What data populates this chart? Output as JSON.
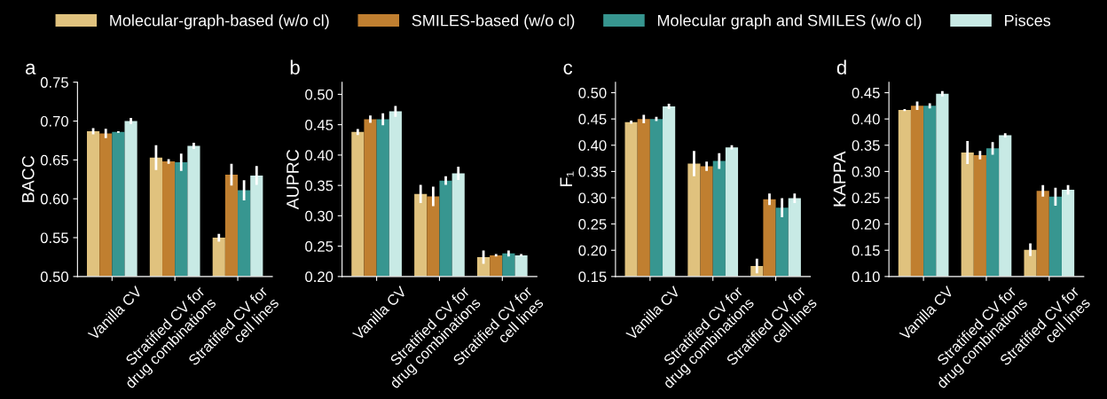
{
  "chart_data": [
    {
      "type": "bar",
      "title": "a",
      "ylabel": "BACC",
      "categories": [
        "Vanilla CV",
        "Stratified CV for\ndrug combinations",
        "Stratified CV for\ncell lines"
      ],
      "ylim": [
        0.5,
        0.75
      ],
      "yticks": [
        {
          "value": 0.5,
          "label": "0.50"
        },
        0.55,
        {
          "value": 0.6,
          "label": "0.60"
        },
        0.65,
        {
          "value": 0.7,
          "label": "0.70"
        },
        0.75
      ],
      "legend": "top",
      "grid": false,
      "series": [
        {
          "name": "Molecular-graph-based (w/o cl)",
          "color": "#e0c27e",
          "values": [
            0.687,
            0.653,
            0.55
          ],
          "errors": [
            0.004,
            0.016,
            0.005
          ]
        },
        {
          "name": "SMILES-based (w/o cl)",
          "color": "#c07f30",
          "values": [
            0.684,
            0.648,
            0.631
          ],
          "errors": [
            0.006,
            0.003,
            0.014
          ]
        },
        {
          "name": "Molecular graph and SMILES (w/o cl)",
          "color": "#379690",
          "values": [
            0.686,
            0.647,
            0.611
          ],
          "errors": [
            0.001,
            0.011,
            0.013
          ]
        },
        {
          "name": "Pisces",
          "color": "#c8eae5",
          "values": [
            0.7,
            0.668,
            0.63
          ],
          "errors": [
            0.004,
            0.004,
            0.012
          ]
        }
      ]
    },
    {
      "type": "bar",
      "title": "b",
      "ylabel": "AUPRC",
      "categories": [
        "Vanilla CV",
        "Stratified CV for\ndrug combinations",
        "Stratified CV for\ncell lines"
      ],
      "ylim": [
        0.2,
        0.52
      ],
      "yticks": [
        {
          "value": 0.2,
          "label": "0.20"
        },
        0.25,
        {
          "value": 0.3,
          "label": "0.30"
        },
        0.35,
        {
          "value": 0.4,
          "label": "0.40"
        },
        0.45,
        {
          "value": 0.5,
          "label": "0.50"
        }
      ],
      "grid": false,
      "series": [
        {
          "color": "#e0c27e",
          "values": [
            0.438,
            0.336,
            0.232
          ],
          "errors": [
            0.005,
            0.015,
            0.011
          ]
        },
        {
          "color": "#c07f30",
          "values": [
            0.459,
            0.332,
            0.235
          ],
          "errors": [
            0.006,
            0.016,
            0.002
          ]
        },
        {
          "color": "#379690",
          "values": [
            0.459,
            0.358,
            0.238
          ],
          "errors": [
            0.01,
            0.007,
            0.005
          ]
        },
        {
          "color": "#c8eae5",
          "values": [
            0.472,
            0.37,
            0.235
          ],
          "errors": [
            0.009,
            0.011,
            0.002
          ]
        }
      ]
    },
    {
      "type": "bar",
      "title": "c",
      "ylabel": "F₁",
      "categories": [
        "Vanilla CV",
        "Stratified CV for\ndrug combinations",
        "Stratified CV for\ncell lines"
      ],
      "ylim": [
        0.15,
        0.52
      ],
      "yticks": [
        0.15,
        {
          "value": 0.2,
          "label": "0.20"
        },
        0.25,
        {
          "value": 0.3,
          "label": "0.30"
        },
        0.35,
        {
          "value": 0.4,
          "label": "0.40"
        },
        0.45,
        {
          "value": 0.5,
          "label": "0.50"
        }
      ],
      "grid": false,
      "series": [
        {
          "color": "#e0c27e",
          "values": [
            0.444,
            0.365,
            0.17
          ],
          "errors": [
            0.003,
            0.024,
            0.014
          ]
        },
        {
          "color": "#c07f30",
          "values": [
            0.45,
            0.36,
            0.297
          ],
          "errors": [
            0.008,
            0.009,
            0.011
          ]
        },
        {
          "color": "#379690",
          "values": [
            0.45,
            0.37,
            0.281
          ],
          "errors": [
            0.004,
            0.015,
            0.018
          ]
        },
        {
          "color": "#c8eae5",
          "values": [
            0.474,
            0.396,
            0.299
          ],
          "errors": [
            0.005,
            0.004,
            0.009
          ]
        }
      ]
    },
    {
      "type": "bar",
      "title": "d",
      "ylabel": "KAPPA",
      "categories": [
        "Vanilla CV",
        "Stratified CV for\ndrug combinations",
        "Stratified CV for\ncell lines"
      ],
      "ylim": [
        0.1,
        0.47
      ],
      "yticks": [
        {
          "value": 0.1,
          "label": "0.10"
        },
        0.15,
        {
          "value": 0.2,
          "label": "0.20"
        },
        0.25,
        {
          "value": 0.3,
          "label": "0.30"
        },
        0.35,
        {
          "value": 0.4,
          "label": "0.40"
        },
        0.45
      ],
      "grid": false,
      "series": [
        {
          "color": "#e0c27e",
          "values": [
            0.417,
            0.336,
            0.151
          ],
          "errors": [
            0.002,
            0.022,
            0.012
          ]
        },
        {
          "color": "#c07f30",
          "values": [
            0.425,
            0.331,
            0.263
          ],
          "errors": [
            0.008,
            0.008,
            0.011
          ]
        },
        {
          "color": "#379690",
          "values": [
            0.425,
            0.344,
            0.252
          ],
          "errors": [
            0.005,
            0.012,
            0.017
          ]
        },
        {
          "color": "#c8eae5",
          "values": [
            0.448,
            0.369,
            0.265
          ],
          "errors": [
            0.005,
            0.004,
            0.009
          ]
        }
      ]
    }
  ]
}
